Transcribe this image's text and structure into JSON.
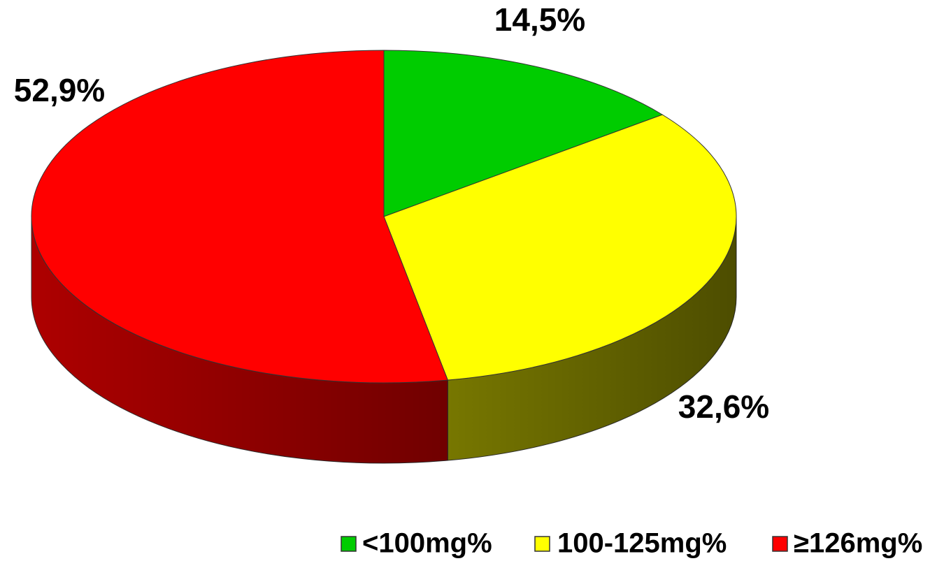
{
  "chart_data": {
    "type": "pie",
    "categories": [
      "<100mg%",
      "100-125mg%",
      "≥126mg%"
    ],
    "values": [
      14.5,
      32.6,
      52.9
    ],
    "value_labels": [
      "14,5%",
      "32,6%",
      "52,9%"
    ],
    "colors": [
      "#00cc00",
      "#ffff00",
      "#ff0000"
    ],
    "legend": "bottom-right"
  }
}
